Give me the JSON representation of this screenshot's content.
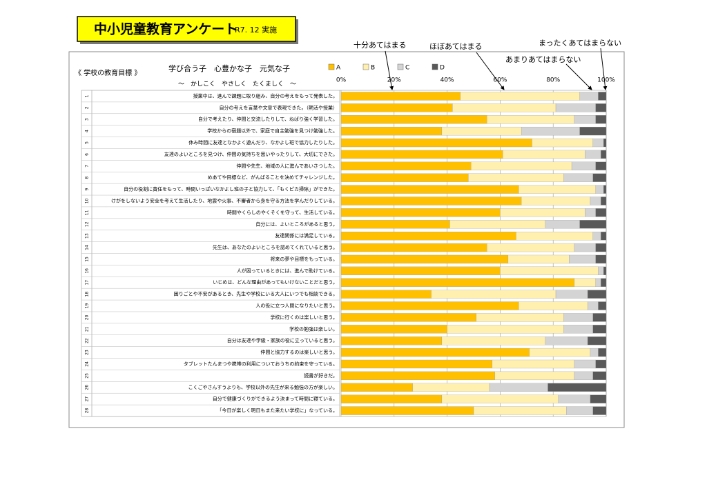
{
  "chart_data": {
    "type": "stacked-barh",
    "title": "中小児童教育アンケート",
    "subtitle": "R7. 12 実施",
    "goal_label": "《 学校の教育目標 》",
    "goal": "学び合う子　心豊かな子　元気な子",
    "goal_sub": "～　かしこく　やさしく　たくましく　～",
    "annotations": [
      "十分あてはまる",
      "ほぼあてはまる",
      "まったくあてはまらない",
      "あまりあてはまらない"
    ],
    "row_numbers": [
      "1",
      "2",
      "3",
      "4",
      "5",
      "6",
      "7",
      "8",
      "9",
      "10",
      "11",
      "12",
      "13",
      "14",
      "15",
      "16",
      "17",
      "18",
      "19",
      "20",
      "21",
      "22",
      "23",
      "24",
      "25",
      "26",
      "27",
      "28"
    ],
    "categories": [
      "授業中は、進んで課題に取り組み、自分の考えをもって発表した。",
      "自分の考えを言葉や文章で表現できた。（朝活や授業）",
      "自分で考えたり、仲間と交流したりして、ねばり強く学習した。",
      "学校からの宿題以外で、家庭で自主勉強を見つけ勉強した。",
      "休み時間に友達となかよく遊んだり、なかよし班で協力したりした。",
      "友達のよいところを見つけ、仲間の気持ちを思いやったりして、大切にできた。",
      "仲間や先生、地域の人に進んであいさつした。",
      "めあてや目標など、がんばることを決めてチャレンジした。",
      "自分の役割に責任をもって、時間いっぱいなかよし班の子と協力して、「もくピカ掃除」ができた。",
      "けがをしないよう安全を考えて生活したり、地震や火事、不審者から身を守る方法を学んだりしている。",
      "時間やくらしのやくそくを守って、生活している。",
      "自分には、よいところがあると思う。",
      "友達関係には満足している。",
      "先生は、あなたのよいところを認めてくれていると思う。",
      "将来の夢や目標をもっている。",
      "人が困っているときには、進んで助けている。",
      "いじめは、どんな理由があってもいけないことだと思う。",
      "困りごとや不安があるとき、先生や学校にいる大人にいつでも相談できる。",
      "人の役に立つ人間になりたいと思う。",
      "学校に行くのは楽しいと思う。",
      "学校の勉強は楽しい。",
      "自分は友達や学級・家族の役に立っていると思う。",
      "仲間と協力するのは楽しいと思う。",
      "タブレットたんまつや携帯の利用についておうちの約束を守っている。",
      "読書が好きだ。",
      "こくごやさんすうよりも、学校以外の先生が来る勉強の方が楽しい。",
      "自分で健康づくりができるよう決まって時間に寝ている。",
      "「今日が楽しく明日もまた来たい学校に」なっている。"
    ],
    "series": [
      {
        "name": "A",
        "color": "#ffc000",
        "values": [
          45,
          42,
          55,
          38,
          72,
          61,
          49,
          48,
          67,
          68,
          60,
          41,
          66,
          55,
          63,
          60,
          88,
          34,
          67,
          51,
          40,
          38,
          71,
          57,
          58,
          27,
          38,
          50
        ]
      },
      {
        "name": "B",
        "color": "#fff0b0",
        "values": [
          45,
          39,
          33,
          30,
          23,
          31,
          38,
          36,
          29,
          26,
          32,
          36,
          29,
          33,
          23,
          37,
          8,
          47,
          26,
          33,
          44,
          39,
          23,
          31,
          30,
          29,
          44,
          35
        ]
      },
      {
        "name": "C",
        "color": "#d4d4d4",
        "values": [
          7,
          15,
          8,
          22,
          4,
          6,
          9,
          11,
          3,
          4,
          4,
          13,
          3,
          8,
          10,
          2,
          2,
          12,
          4,
          11,
          11,
          16,
          3,
          8,
          7,
          22,
          12,
          10
        ]
      },
      {
        "name": "D",
        "color": "#595959",
        "values": [
          3,
          4,
          4,
          10,
          1,
          2,
          4,
          5,
          1,
          2,
          4,
          10,
          2,
          4,
          4,
          1,
          2,
          7,
          3,
          5,
          5,
          7,
          3,
          4,
          5,
          22,
          6,
          5
        ]
      }
    ],
    "xlim": [
      0,
      100
    ],
    "xticks": [
      {
        "value": 0,
        "label": "0%"
      },
      {
        "value": 20,
        "label": "20%"
      },
      {
        "value": 40,
        "label": "40%"
      },
      {
        "value": 60,
        "label": "60%"
      },
      {
        "value": 80,
        "label": "80%"
      },
      {
        "value": 100,
        "label": "100%"
      }
    ],
    "grid": true
  }
}
